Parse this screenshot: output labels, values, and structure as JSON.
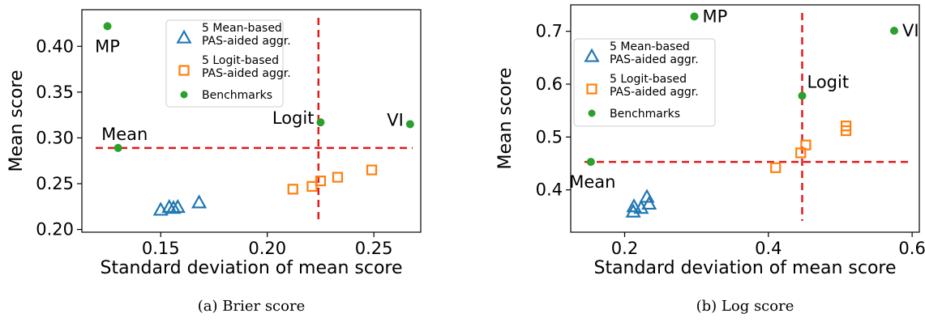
{
  "colors": {
    "mean_series": "#1f77b4",
    "logit_series": "#ff7f0e",
    "benchmarks": "#2ca02c",
    "reference_lines": "#e31a1c"
  },
  "chart_data": [
    {
      "type": "scatter",
      "caption": "(a) Brier score",
      "xlabel": "Standard deviation of mean score",
      "ylabel": "Mean score",
      "xlim": [
        0.113,
        0.272
      ],
      "ylim": [
        0.197,
        0.44
      ],
      "xticks": [
        0.15,
        0.2,
        0.25
      ],
      "xtick_labels": [
        "0.15",
        "0.20",
        "0.25"
      ],
      "yticks": [
        0.2,
        0.25,
        0.3,
        0.35,
        0.4
      ],
      "ytick_labels": [
        "0.20",
        "0.25",
        "0.30",
        "0.35",
        "0.40"
      ],
      "legend": {
        "position": "top-center",
        "entries": [
          "5 Mean-based PAS-aided aggr.",
          "5 Logit-based PAS-aided aggr.",
          "Benchmarks"
        ]
      },
      "series": [
        {
          "name": "5 Mean-based PAS-aided aggr.",
          "marker": "triangle",
          "points": [
            [
              0.15,
              0.221
            ],
            [
              0.154,
              0.224
            ],
            [
              0.156,
              0.223
            ],
            [
              0.158,
              0.224
            ],
            [
              0.168,
              0.229
            ]
          ]
        },
        {
          "name": "5 Logit-based PAS-aided aggr.",
          "marker": "square",
          "points": [
            [
              0.212,
              0.244
            ],
            [
              0.221,
              0.247
            ],
            [
              0.225,
              0.253
            ],
            [
              0.233,
              0.257
            ],
            [
              0.249,
              0.265
            ]
          ]
        },
        {
          "name": "Benchmarks",
          "marker": "circle",
          "points": [
            {
              "x": 0.125,
              "y": 0.422,
              "label": "MP"
            },
            {
              "x": 0.13,
              "y": 0.289,
              "label": "Mean"
            },
            {
              "x": 0.225,
              "y": 0.317,
              "label": "Logit"
            },
            {
              "x": 0.267,
              "y": 0.315,
              "label": "VI"
            }
          ]
        }
      ],
      "reference_lines": {
        "x": 0.224,
        "y": 0.289
      }
    },
    {
      "type": "scatter",
      "caption": "(b) Log score",
      "xlabel": "Standard deviation of mean score",
      "ylabel": "Mean score",
      "xlim": [
        0.125,
        0.61
      ],
      "ylim": [
        0.32,
        0.75
      ],
      "xticks": [
        0.2,
        0.4,
        0.6
      ],
      "xtick_labels": [
        "0.2",
        "0.4",
        "0.6"
      ],
      "yticks": [
        0.4,
        0.5,
        0.6,
        0.7
      ],
      "ytick_labels": [
        "0.4",
        "0.5",
        "0.6",
        "0.7"
      ],
      "legend": {
        "position": "upper-left",
        "entries": [
          "5 Mean-based PAS-aided aggr.",
          "5 Logit-based PAS-aided aggr.",
          "Benchmarks"
        ]
      },
      "series": [
        {
          "name": "5 Mean-based PAS-aided aggr.",
          "marker": "triangle",
          "points": [
            [
              0.212,
              0.358
            ],
            [
              0.213,
              0.368
            ],
            [
              0.223,
              0.365
            ],
            [
              0.231,
              0.386
            ],
            [
              0.234,
              0.373
            ]
          ]
        },
        {
          "name": "5 Logit-based PAS-aided aggr.",
          "marker": "square",
          "points": [
            [
              0.41,
              0.442
            ],
            [
              0.445,
              0.47
            ],
            [
              0.452,
              0.485
            ],
            [
              0.508,
              0.512
            ],
            [
              0.508,
              0.521
            ]
          ]
        },
        {
          "name": "Benchmarks",
          "marker": "circle",
          "points": [
            {
              "x": 0.297,
              "y": 0.728,
              "label": "MP"
            },
            {
              "x": 0.575,
              "y": 0.701,
              "label": "VI"
            },
            {
              "x": 0.447,
              "y": 0.578,
              "label": "Logit"
            },
            {
              "x": 0.153,
              "y": 0.453,
              "label": "Mean"
            }
          ]
        }
      ],
      "reference_lines": {
        "x": 0.447,
        "y": 0.453
      }
    }
  ]
}
